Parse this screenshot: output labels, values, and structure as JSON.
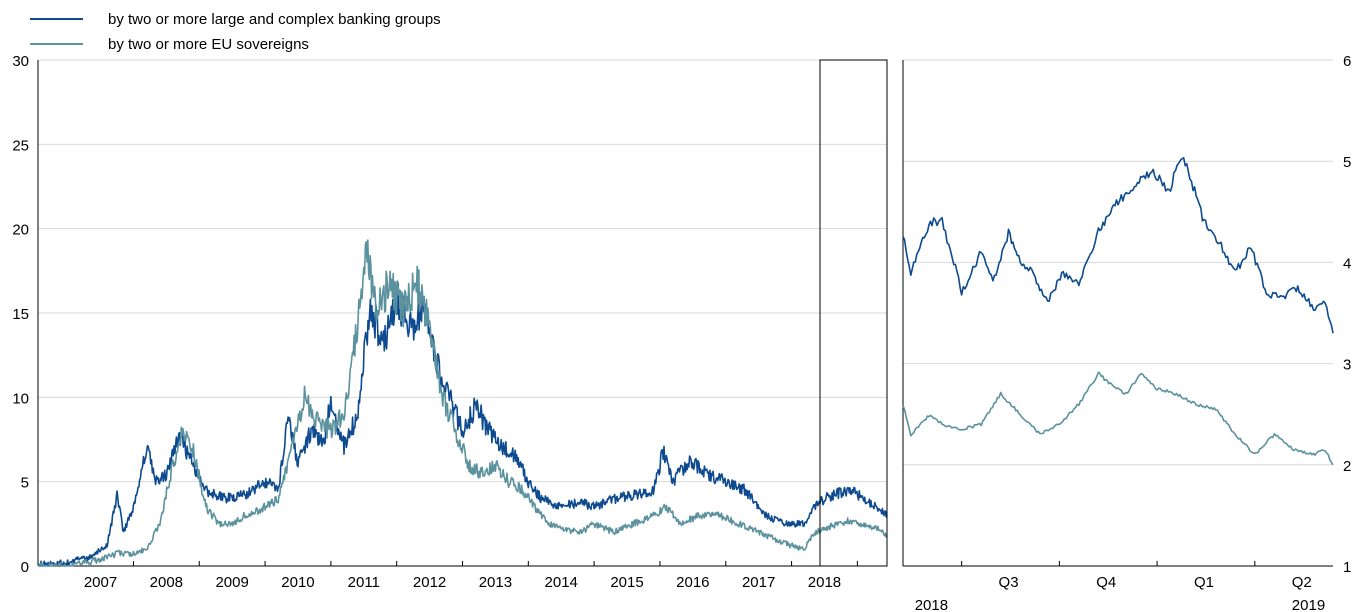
{
  "colors": {
    "banks": "#0d4a8f",
    "sovereigns": "#5b929e",
    "grid": "#d9d9d9",
    "axis": "#000000"
  },
  "legend": [
    {
      "label": "by two or more large and complex banking groups",
      "series": "banks"
    },
    {
      "label": "by two or more EU sovereigns",
      "series": "sovereigns"
    }
  ],
  "chart_data": [
    {
      "type": "line",
      "title": "",
      "xlabel": "",
      "ylabel": "",
      "x_range": [
        2006.55,
        2019.45
      ],
      "ylim": [
        0,
        30
      ],
      "yticks": [
        "0",
        "5",
        "10",
        "15",
        "20",
        "25",
        "30"
      ],
      "x_tick_labels": [
        {
          "x": 2007.5,
          "label": "2007"
        },
        {
          "x": 2008.5,
          "label": "2008"
        },
        {
          "x": 2009.5,
          "label": "2009"
        },
        {
          "x": 2010.5,
          "label": "2010"
        },
        {
          "x": 2011.5,
          "label": "2011"
        },
        {
          "x": 2012.5,
          "label": "2012"
        },
        {
          "x": 2013.5,
          "label": "2013"
        },
        {
          "x": 2014.5,
          "label": "2014"
        },
        {
          "x": 2015.5,
          "label": "2015"
        },
        {
          "x": 2016.5,
          "label": "2016"
        },
        {
          "x": 2017.5,
          "label": "2017"
        },
        {
          "x": 2018.5,
          "label": "2018"
        },
        {
          "x": 2019.5,
          "label": ""
        }
      ],
      "grid": true,
      "series": [
        {
          "name": "by two or more large and complex banking groups",
          "key": "banks",
          "points": [
            [
              2006.55,
              0.1
            ],
            [
              2007.0,
              0.2
            ],
            [
              2007.3,
              0.5
            ],
            [
              2007.6,
              1.2
            ],
            [
              2007.75,
              4.2
            ],
            [
              2007.85,
              2.0
            ],
            [
              2008.0,
              3.5
            ],
            [
              2008.2,
              7.0
            ],
            [
              2008.35,
              5.0
            ],
            [
              2008.5,
              5.5
            ],
            [
              2008.7,
              7.8
            ],
            [
              2008.9,
              6.0
            ],
            [
              2009.1,
              4.5
            ],
            [
              2009.4,
              4.0
            ],
            [
              2009.7,
              4.2
            ],
            [
              2010.0,
              5.0
            ],
            [
              2010.2,
              4.5
            ],
            [
              2010.35,
              9.0
            ],
            [
              2010.5,
              6.0
            ],
            [
              2010.7,
              8.0
            ],
            [
              2010.9,
              7.5
            ],
            [
              2011.0,
              10.0
            ],
            [
              2011.2,
              7.0
            ],
            [
              2011.4,
              9.0
            ],
            [
              2011.6,
              15.5
            ],
            [
              2011.8,
              13.0
            ],
            [
              2012.0,
              16.0
            ],
            [
              2012.2,
              14.0
            ],
            [
              2012.4,
              15.0
            ],
            [
              2012.6,
              12.0
            ],
            [
              2012.8,
              10.0
            ],
            [
              2013.0,
              8.0
            ],
            [
              2013.2,
              9.5
            ],
            [
              2013.4,
              8.0
            ],
            [
              2013.6,
              7.0
            ],
            [
              2013.8,
              6.5
            ],
            [
              2014.0,
              5.0
            ],
            [
              2014.2,
              4.0
            ],
            [
              2014.5,
              3.5
            ],
            [
              2014.8,
              3.8
            ],
            [
              2015.0,
              3.5
            ],
            [
              2015.3,
              4.0
            ],
            [
              2015.6,
              4.2
            ],
            [
              2015.9,
              4.5
            ],
            [
              2016.05,
              6.8
            ],
            [
              2016.2,
              5.0
            ],
            [
              2016.45,
              6.2
            ],
            [
              2016.7,
              5.5
            ],
            [
              2017.0,
              5.0
            ],
            [
              2017.3,
              4.5
            ],
            [
              2017.6,
              3.0
            ],
            [
              2017.9,
              2.5
            ],
            [
              2018.2,
              2.5
            ],
            [
              2018.35,
              3.5
            ],
            [
              2018.5,
              4.0
            ],
            [
              2018.7,
              4.3
            ],
            [
              2018.9,
              4.5
            ],
            [
              2019.1,
              4.0
            ],
            [
              2019.3,
              3.5
            ],
            [
              2019.45,
              3.0
            ]
          ]
        },
        {
          "name": "by two or more EU sovereigns",
          "key": "sovereigns",
          "points": [
            [
              2006.55,
              0.0
            ],
            [
              2007.0,
              0.0
            ],
            [
              2007.4,
              0.3
            ],
            [
              2007.6,
              0.5
            ],
            [
              2007.8,
              0.8
            ],
            [
              2008.0,
              0.7
            ],
            [
              2008.2,
              1.0
            ],
            [
              2008.4,
              2.5
            ],
            [
              2008.6,
              6.0
            ],
            [
              2008.75,
              8.0
            ],
            [
              2008.9,
              7.0
            ],
            [
              2009.1,
              3.5
            ],
            [
              2009.3,
              2.5
            ],
            [
              2009.5,
              2.5
            ],
            [
              2009.7,
              3.0
            ],
            [
              2010.0,
              3.5
            ],
            [
              2010.2,
              4.0
            ],
            [
              2010.4,
              7.0
            ],
            [
              2010.6,
              10.0
            ],
            [
              2010.8,
              8.5
            ],
            [
              2011.0,
              8.0
            ],
            [
              2011.2,
              9.0
            ],
            [
              2011.4,
              14.0
            ],
            [
              2011.55,
              18.8
            ],
            [
              2011.7,
              15.0
            ],
            [
              2011.9,
              17.0
            ],
            [
              2012.1,
              15.0
            ],
            [
              2012.3,
              17.0
            ],
            [
              2012.5,
              14.0
            ],
            [
              2012.7,
              10.0
            ],
            [
              2012.9,
              8.0
            ],
            [
              2013.1,
              6.0
            ],
            [
              2013.3,
              5.5
            ],
            [
              2013.5,
              6.0
            ],
            [
              2013.7,
              5.0
            ],
            [
              2013.9,
              4.5
            ],
            [
              2014.1,
              3.5
            ],
            [
              2014.3,
              2.5
            ],
            [
              2014.5,
              2.2
            ],
            [
              2014.8,
              2.0
            ],
            [
              2015.0,
              2.5
            ],
            [
              2015.3,
              2.0
            ],
            [
              2015.6,
              2.5
            ],
            [
              2015.9,
              3.0
            ],
            [
              2016.1,
              3.5
            ],
            [
              2016.3,
              2.5
            ],
            [
              2016.6,
              3.0
            ],
            [
              2016.9,
              3.0
            ],
            [
              2017.2,
              2.5
            ],
            [
              2017.5,
              2.0
            ],
            [
              2017.8,
              1.5
            ],
            [
              2018.0,
              1.2
            ],
            [
              2018.2,
              1.0
            ],
            [
              2018.35,
              2.0
            ],
            [
              2018.5,
              2.2
            ],
            [
              2018.7,
              2.5
            ],
            [
              2018.9,
              2.7
            ],
            [
              2019.1,
              2.4
            ],
            [
              2019.3,
              2.2
            ],
            [
              2019.45,
              1.8
            ]
          ]
        }
      ]
    },
    {
      "type": "line",
      "title": "",
      "xlabel": "",
      "ylabel": "",
      "x_range": [
        2018.35,
        2019.45
      ],
      "ylim": [
        1,
        6
      ],
      "yticks": [
        "1",
        "2",
        "3",
        "4",
        "5",
        "6"
      ],
      "x_tick_labels": [
        {
          "x": 2018.62,
          "label": "Q3"
        },
        {
          "x": 2018.87,
          "label": "Q4"
        },
        {
          "x": 2019.12,
          "label": "Q1"
        },
        {
          "x": 2019.37,
          "label": "Q2"
        }
      ],
      "year_labels": [
        {
          "x": 2018.38,
          "label": "2018"
        },
        {
          "x": 2019.43,
          "label": "2019"
        }
      ],
      "grid": true,
      "series": [
        {
          "name": "by two or more large and complex banking groups",
          "key": "banks",
          "points": [
            [
              2018.35,
              4.3
            ],
            [
              2018.37,
              3.9
            ],
            [
              2018.42,
              4.4
            ],
            [
              2018.45,
              4.4
            ],
            [
              2018.48,
              4.0
            ],
            [
              2018.5,
              3.7
            ],
            [
              2018.55,
              4.1
            ],
            [
              2018.58,
              3.8
            ],
            [
              2018.62,
              4.3
            ],
            [
              2018.65,
              4.0
            ],
            [
              2018.68,
              3.9
            ],
            [
              2018.72,
              3.6
            ],
            [
              2018.76,
              3.9
            ],
            [
              2018.8,
              3.8
            ],
            [
              2018.85,
              4.3
            ],
            [
              2018.9,
              4.6
            ],
            [
              2018.95,
              4.8
            ],
            [
              2018.99,
              4.9
            ],
            [
              2019.03,
              4.7
            ],
            [
              2019.06,
              5.05
            ],
            [
              2019.08,
              4.9
            ],
            [
              2019.12,
              4.4
            ],
            [
              2019.16,
              4.2
            ],
            [
              2019.2,
              3.9
            ],
            [
              2019.24,
              4.15
            ],
            [
              2019.28,
              3.7
            ],
            [
              2019.32,
              3.65
            ],
            [
              2019.36,
              3.75
            ],
            [
              2019.4,
              3.55
            ],
            [
              2019.43,
              3.6
            ],
            [
              2019.45,
              3.3
            ]
          ]
        },
        {
          "name": "by two or more EU sovereigns",
          "key": "sovereigns",
          "points": [
            [
              2018.35,
              2.6
            ],
            [
              2018.37,
              2.3
            ],
            [
              2018.42,
              2.5
            ],
            [
              2018.45,
              2.4
            ],
            [
              2018.5,
              2.35
            ],
            [
              2018.55,
              2.4
            ],
            [
              2018.6,
              2.7
            ],
            [
              2018.65,
              2.5
            ],
            [
              2018.7,
              2.3
            ],
            [
              2018.75,
              2.4
            ],
            [
              2018.8,
              2.6
            ],
            [
              2018.85,
              2.9
            ],
            [
              2018.88,
              2.8
            ],
            [
              2018.92,
              2.7
            ],
            [
              2018.96,
              2.9
            ],
            [
              2019.0,
              2.75
            ],
            [
              2019.05,
              2.7
            ],
            [
              2019.1,
              2.6
            ],
            [
              2019.15,
              2.55
            ],
            [
              2019.2,
              2.3
            ],
            [
              2019.25,
              2.1
            ],
            [
              2019.3,
              2.3
            ],
            [
              2019.35,
              2.15
            ],
            [
              2019.4,
              2.1
            ],
            [
              2019.43,
              2.15
            ],
            [
              2019.45,
              2.0
            ]
          ]
        }
      ]
    }
  ]
}
